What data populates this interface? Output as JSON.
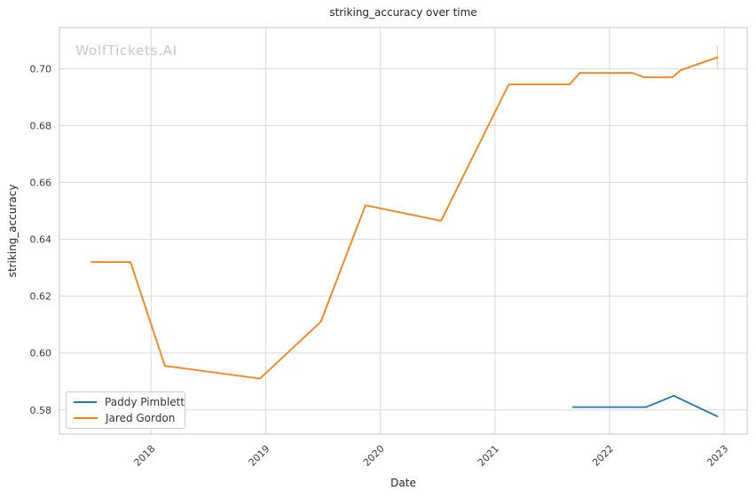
{
  "watermark": "WolfTickets.AI",
  "chart_data": {
    "type": "line",
    "title": "striking_accuracy over time",
    "xlabel": "Date",
    "ylabel": "striking_accuracy",
    "xlim": [
      2017.2,
      2023.2
    ],
    "ylim": [
      0.5715,
      0.7145
    ],
    "grid": true,
    "legend_position": "lower-left",
    "xticks": {
      "values": [
        2018,
        2019,
        2020,
        2021,
        2022,
        2023
      ],
      "labels": [
        "2018",
        "2019",
        "2020",
        "2021",
        "2022",
        "2023"
      ]
    },
    "yticks": {
      "values": [
        0.58,
        0.6,
        0.62,
        0.64,
        0.66,
        0.68,
        0.7
      ],
      "labels": [
        "0.58",
        "0.60",
        "0.62",
        "0.64",
        "0.66",
        "0.68",
        "0.70"
      ]
    },
    "series": [
      {
        "name": "Paddy Pimblett",
        "color": "#1f77b4",
        "x": [
          2021.68,
          2022.32,
          2022.56,
          2022.94
        ],
        "y": [
          0.581,
          0.581,
          0.585,
          0.5777
        ]
      },
      {
        "name": "Jared Gordon",
        "color": "#ff7f0e",
        "x": [
          2017.48,
          2017.82,
          2018.12,
          2018.95,
          2019.48,
          2019.87,
          2020.53,
          2021.12,
          2021.65,
          2021.74,
          2022.2,
          2022.3,
          2022.55,
          2022.62,
          2022.94
        ],
        "y": [
          0.632,
          0.632,
          0.5955,
          0.591,
          0.611,
          0.652,
          0.6465,
          0.6945,
          0.6945,
          0.6985,
          0.6985,
          0.697,
          0.697,
          0.6995,
          0.704
        ]
      }
    ],
    "end_marker": {
      "series": "Jared Gordon",
      "x": 2022.94,
      "y_low": 0.7,
      "y_high": 0.708,
      "opacity": 0.4
    }
  },
  "colors": {
    "background": "#ffffff",
    "grid": "#d9d9d9",
    "spine": "#c6c6c6",
    "title_text": "#262626",
    "tick_text": "#3b3b3b",
    "watermark": "#c8c8c8"
  }
}
